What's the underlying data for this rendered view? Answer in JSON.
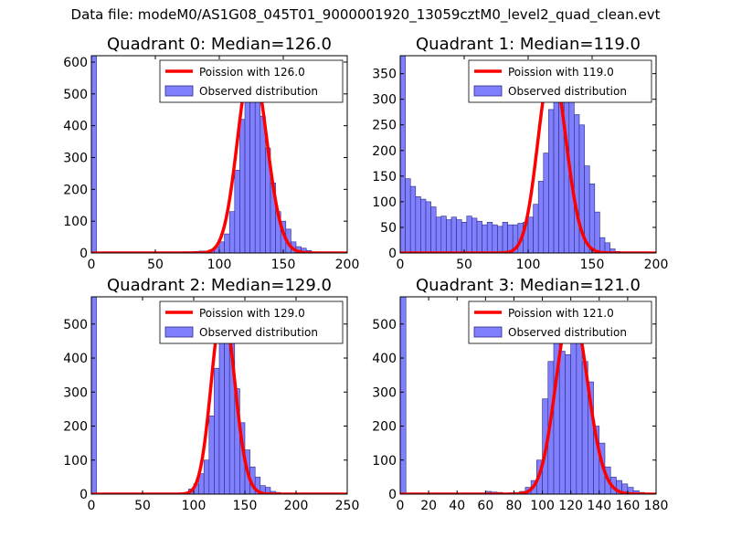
{
  "figure_title": "Data file: modeM0/AS1G08_045T01_9000001920_13059cztM0_level2_quad_clean.evt",
  "colors": {
    "poisson": "#ff0000",
    "bars_fill": "#8080ff",
    "bars_edge": "#2a2a80"
  },
  "chart_data": [
    {
      "type": "bar",
      "title": "Quadrant 0: Median=126.0",
      "legend": [
        "Poission with 126.0",
        "Observed distribution"
      ],
      "legend_loc": "upper right",
      "median": 126.0,
      "poisson_scale": 600,
      "xlim": [
        0,
        200
      ],
      "ylim": [
        0,
        620
      ],
      "xticks": [
        0,
        50,
        100,
        150,
        200
      ],
      "xtick_labels": [
        "0",
        "50",
        "100",
        "150",
        "200"
      ],
      "yticks": [
        0,
        100,
        200,
        300,
        400,
        500,
        600
      ],
      "ytick_labels": [
        "0",
        "100",
        "200",
        "300",
        "400",
        "500",
        "600"
      ],
      "bin_width": 4,
      "bars": [
        {
          "x": 0,
          "y": 620
        },
        {
          "x": 72,
          "y": 4
        },
        {
          "x": 76,
          "y": 4
        },
        {
          "x": 80,
          "y": 5
        },
        {
          "x": 84,
          "y": 6
        },
        {
          "x": 88,
          "y": 6
        },
        {
          "x": 92,
          "y": 10
        },
        {
          "x": 96,
          "y": 20
        },
        {
          "x": 100,
          "y": 35
        },
        {
          "x": 104,
          "y": 60
        },
        {
          "x": 108,
          "y": 130
        },
        {
          "x": 112,
          "y": 260
        },
        {
          "x": 116,
          "y": 420
        },
        {
          "x": 120,
          "y": 540
        },
        {
          "x": 124,
          "y": 590
        },
        {
          "x": 128,
          "y": 520
        },
        {
          "x": 132,
          "y": 430
        },
        {
          "x": 136,
          "y": 330
        },
        {
          "x": 140,
          "y": 220
        },
        {
          "x": 144,
          "y": 130
        },
        {
          "x": 148,
          "y": 100
        },
        {
          "x": 152,
          "y": 75
        },
        {
          "x": 156,
          "y": 35
        },
        {
          "x": 160,
          "y": 20
        },
        {
          "x": 164,
          "y": 15
        },
        {
          "x": 168,
          "y": 8
        },
        {
          "x": 172,
          "y": 3
        },
        {
          "x": 176,
          "y": 2
        },
        {
          "x": 180,
          "y": 2
        },
        {
          "x": 184,
          "y": 2
        }
      ]
    },
    {
      "type": "bar",
      "title": "Quadrant 1: Median=119.0",
      "legend": [
        "Poission with 119.0",
        "Observed distribution"
      ],
      "legend_loc": "upper right",
      "median": 119.0,
      "poisson_scale": 365,
      "xlim": [
        0,
        200
      ],
      "ylim": [
        0,
        385
      ],
      "xticks": [
        0,
        50,
        100,
        150,
        200
      ],
      "xtick_labels": [
        "0",
        "50",
        "100",
        "150",
        "200"
      ],
      "yticks": [
        0,
        50,
        100,
        150,
        200,
        250,
        300,
        350
      ],
      "ytick_labels": [
        "0",
        "50",
        "100",
        "150",
        "200",
        "250",
        "300",
        "350"
      ],
      "bin_width": 4,
      "bars": [
        {
          "x": 0,
          "y": 385
        },
        {
          "x": 4,
          "y": 145
        },
        {
          "x": 8,
          "y": 130
        },
        {
          "x": 12,
          "y": 110
        },
        {
          "x": 16,
          "y": 105
        },
        {
          "x": 20,
          "y": 100
        },
        {
          "x": 24,
          "y": 90
        },
        {
          "x": 28,
          "y": 70
        },
        {
          "x": 32,
          "y": 72
        },
        {
          "x": 36,
          "y": 65
        },
        {
          "x": 40,
          "y": 70
        },
        {
          "x": 44,
          "y": 65
        },
        {
          "x": 48,
          "y": 60
        },
        {
          "x": 52,
          "y": 72
        },
        {
          "x": 56,
          "y": 68
        },
        {
          "x": 60,
          "y": 62
        },
        {
          "x": 64,
          "y": 55
        },
        {
          "x": 68,
          "y": 60
        },
        {
          "x": 72,
          "y": 55
        },
        {
          "x": 76,
          "y": 52
        },
        {
          "x": 80,
          "y": 60
        },
        {
          "x": 84,
          "y": 55
        },
        {
          "x": 88,
          "y": 55
        },
        {
          "x": 92,
          "y": 58
        },
        {
          "x": 96,
          "y": 60
        },
        {
          "x": 100,
          "y": 70
        },
        {
          "x": 104,
          "y": 95
        },
        {
          "x": 108,
          "y": 140
        },
        {
          "x": 112,
          "y": 195
        },
        {
          "x": 116,
          "y": 280
        },
        {
          "x": 120,
          "y": 355
        },
        {
          "x": 124,
          "y": 340
        },
        {
          "x": 128,
          "y": 310
        },
        {
          "x": 132,
          "y": 305
        },
        {
          "x": 136,
          "y": 270
        },
        {
          "x": 140,
          "y": 250
        },
        {
          "x": 144,
          "y": 170
        },
        {
          "x": 148,
          "y": 135
        },
        {
          "x": 152,
          "y": 80
        },
        {
          "x": 156,
          "y": 30
        },
        {
          "x": 160,
          "y": 20
        },
        {
          "x": 164,
          "y": 8
        },
        {
          "x": 168,
          "y": 3
        },
        {
          "x": 172,
          "y": 2
        }
      ]
    },
    {
      "type": "bar",
      "title": "Quadrant 2: Median=129.0",
      "legend": [
        "Poission with 129.0",
        "Observed distribution"
      ],
      "legend_loc": "upper right",
      "median": 129.0,
      "poisson_scale": 550,
      "xlim": [
        0,
        250
      ],
      "ylim": [
        0,
        580
      ],
      "xticks": [
        0,
        50,
        100,
        150,
        200,
        250
      ],
      "xtick_labels": [
        "0",
        "50",
        "100",
        "150",
        "200",
        "250"
      ],
      "yticks": [
        0,
        100,
        200,
        300,
        400,
        500
      ],
      "ytick_labels": [
        "0",
        "100",
        "200",
        "300",
        "400",
        "500"
      ],
      "bin_width": 5,
      "bars": [
        {
          "x": 0,
          "y": 580
        },
        {
          "x": 75,
          "y": 3
        },
        {
          "x": 80,
          "y": 3
        },
        {
          "x": 85,
          "y": 4
        },
        {
          "x": 90,
          "y": 5
        },
        {
          "x": 95,
          "y": 15
        },
        {
          "x": 100,
          "y": 30
        },
        {
          "x": 105,
          "y": 60
        },
        {
          "x": 110,
          "y": 100
        },
        {
          "x": 115,
          "y": 230
        },
        {
          "x": 120,
          "y": 370
        },
        {
          "x": 125,
          "y": 520
        },
        {
          "x": 130,
          "y": 530
        },
        {
          "x": 135,
          "y": 450
        },
        {
          "x": 140,
          "y": 310
        },
        {
          "x": 145,
          "y": 210
        },
        {
          "x": 150,
          "y": 130
        },
        {
          "x": 155,
          "y": 80
        },
        {
          "x": 160,
          "y": 50
        },
        {
          "x": 165,
          "y": 25
        },
        {
          "x": 170,
          "y": 20
        },
        {
          "x": 175,
          "y": 8
        },
        {
          "x": 180,
          "y": 5
        },
        {
          "x": 185,
          "y": 3
        },
        {
          "x": 190,
          "y": 3
        },
        {
          "x": 195,
          "y": 2
        },
        {
          "x": 200,
          "y": 2
        }
      ]
    },
    {
      "type": "bar",
      "title": "Quadrant 3: Median=121.0",
      "legend": [
        "Poission with 121.0",
        "Observed distribution"
      ],
      "legend_loc": "upper right",
      "median": 121.0,
      "poisson_scale": 550,
      "xlim": [
        0,
        180
      ],
      "ylim": [
        0,
        580
      ],
      "xticks": [
        0,
        20,
        40,
        60,
        80,
        100,
        120,
        140,
        160,
        180
      ],
      "xtick_labels": [
        "0",
        "20",
        "40",
        "60",
        "80",
        "100",
        "120",
        "140",
        "160",
        "180"
      ],
      "yticks": [
        0,
        100,
        200,
        300,
        400,
        500
      ],
      "ytick_labels": [
        "0",
        "100",
        "200",
        "300",
        "400",
        "500"
      ],
      "bin_width": 4,
      "bars": [
        {
          "x": 0,
          "y": 580
        },
        {
          "x": 60,
          "y": 8
        },
        {
          "x": 64,
          "y": 6
        },
        {
          "x": 68,
          "y": 5
        },
        {
          "x": 72,
          "y": 3
        },
        {
          "x": 76,
          "y": 4
        },
        {
          "x": 80,
          "y": 5
        },
        {
          "x": 84,
          "y": 8
        },
        {
          "x": 88,
          "y": 20
        },
        {
          "x": 92,
          "y": 40
        },
        {
          "x": 96,
          "y": 100
        },
        {
          "x": 100,
          "y": 280
        },
        {
          "x": 104,
          "y": 390
        },
        {
          "x": 108,
          "y": 500
        },
        {
          "x": 112,
          "y": 420
        },
        {
          "x": 116,
          "y": 410
        },
        {
          "x": 120,
          "y": 510
        },
        {
          "x": 124,
          "y": 520
        },
        {
          "x": 128,
          "y": 390
        },
        {
          "x": 132,
          "y": 330
        },
        {
          "x": 136,
          "y": 200
        },
        {
          "x": 140,
          "y": 150
        },
        {
          "x": 144,
          "y": 80
        },
        {
          "x": 148,
          "y": 50
        },
        {
          "x": 152,
          "y": 40
        },
        {
          "x": 156,
          "y": 30
        },
        {
          "x": 160,
          "y": 20
        },
        {
          "x": 164,
          "y": 10
        },
        {
          "x": 168,
          "y": 5
        },
        {
          "x": 172,
          "y": 3
        }
      ]
    }
  ]
}
